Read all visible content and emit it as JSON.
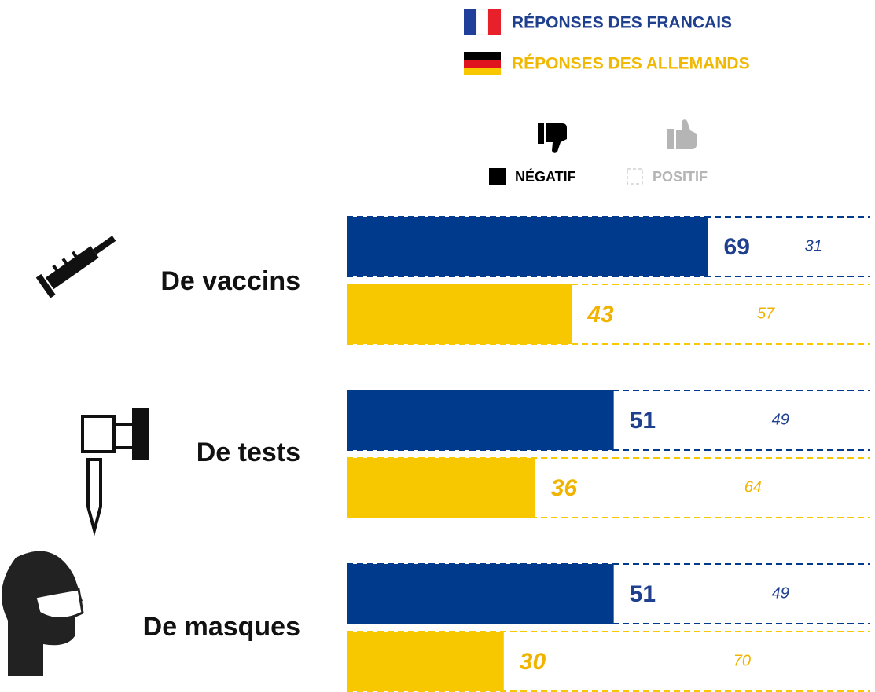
{
  "chart_data": {
    "type": "stacked-bar-h",
    "categories": [
      "De vaccins",
      "De tests",
      "De masques"
    ],
    "parts": [
      "NÉGATIF",
      "POSITIF"
    ],
    "series": [
      {
        "name": "RÉPONSES DES FRANCAIS",
        "color": "#003a8c",
        "negative": [
          69,
          51,
          51
        ],
        "positive": [
          31,
          49,
          49
        ]
      },
      {
        "name": "RÉPONSES DES ALLEMANDS",
        "color": "#f7c800",
        "negative": [
          43,
          36,
          30
        ],
        "positive": [
          57,
          64,
          70
        ]
      }
    ],
    "xlim": [
      0,
      100
    ]
  }
}
